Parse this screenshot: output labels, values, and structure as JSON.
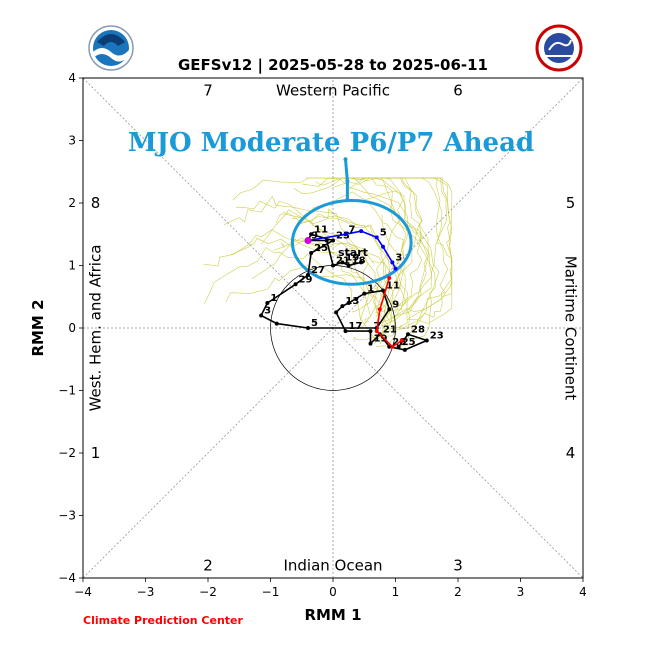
{
  "chart_data": {
    "type": "line",
    "title": "GEFSv12 | 2025-05-28 to 2025-06-11",
    "xlabel": "RMM 1",
    "ylabel": "RMM 2",
    "xlim": [
      -4,
      4
    ],
    "ylim": [
      -4,
      4
    ],
    "xticks": [
      -4,
      -3,
      -2,
      -1,
      0,
      1,
      2,
      3,
      4
    ],
    "yticks": [
      -4,
      -3,
      -2,
      -1,
      0,
      1,
      2,
      3,
      4
    ],
    "tick_labels": [
      "−4",
      "−3",
      "−2",
      "−1",
      "0",
      "1",
      "2",
      "3",
      "4"
    ],
    "grid": false,
    "annotation": "MJO Moderate P6/P7 Ahead",
    "annotation_color": "#1b9ad8",
    "phase_numbers": [
      "1",
      "2",
      "3",
      "4",
      "5",
      "6",
      "7",
      "8"
    ],
    "region_labels": {
      "top": "Western Pacific",
      "bottom": "Indian Ocean",
      "left": "West. Hem. and Africa",
      "right": "Maritime Continent"
    },
    "start_label": "start",
    "series": [
      {
        "color": "#000000",
        "points": [
          {
            "x": 1.05,
            "y": -0.3,
            "label": "25"
          },
          {
            "x": 1.2,
            "y": -0.1,
            "label": "28"
          },
          {
            "x": 1.5,
            "y": -0.2,
            "label": "23"
          },
          {
            "x": 1.15,
            "y": -0.35,
            "label": ""
          },
          {
            "x": 0.9,
            "y": -0.3,
            "label": "28"
          },
          {
            "x": 0.75,
            "y": -0.1,
            "label": "21"
          },
          {
            "x": 0.6,
            "y": -0.25,
            "label": "19"
          },
          {
            "x": 0.6,
            "y": -0.05,
            "label": "7"
          },
          {
            "x": 0.2,
            "y": -0.05,
            "label": "17"
          },
          {
            "x": 0.05,
            "y": 0.25,
            "label": ""
          },
          {
            "x": 0.15,
            "y": 0.35,
            "label": "13"
          },
          {
            "x": 0.25,
            "y": 0.4,
            "label": ""
          },
          {
            "x": 0.5,
            "y": 0.55,
            "label": "1"
          },
          {
            "x": 0.8,
            "y": 0.6,
            "label": "11"
          },
          {
            "x": 0.9,
            "y": 0.3,
            "label": "9"
          },
          {
            "x": 0.7,
            "y": 0.0,
            "label": ""
          },
          {
            "x": -0.4,
            "y": 0.0,
            "label": "5"
          },
          {
            "x": -0.9,
            "y": 0.07,
            "label": ""
          },
          {
            "x": -1.15,
            "y": 0.2,
            "label": "3"
          },
          {
            "x": -1.05,
            "y": 0.4,
            "label": "1"
          },
          {
            "x": -0.6,
            "y": 0.7,
            "label": "29"
          },
          {
            "x": -0.4,
            "y": 0.85,
            "label": "27"
          },
          {
            "x": -0.35,
            "y": 1.2,
            "label": "25"
          },
          {
            "x": 0.0,
            "y": 1.4,
            "label": "23"
          },
          {
            "x": -0.35,
            "y": 1.5,
            "label": "11"
          },
          {
            "x": -0.4,
            "y": 1.4,
            "label": "9"
          },
          {
            "x": -0.1,
            "y": 1.4,
            "label": ""
          },
          {
            "x": 0.0,
            "y": 1.0,
            "label": "21"
          },
          {
            "x": 0.15,
            "y": 1.05,
            "label": "19"
          },
          {
            "x": 0.25,
            "y": 1.0,
            "label": "18"
          },
          {
            "x": 0.45,
            "y": 1.05,
            "label": ""
          }
        ]
      },
      {
        "color": "#0000ff",
        "points": [
          {
            "x": -0.4,
            "y": 1.4,
            "label": ""
          },
          {
            "x": 0.2,
            "y": 1.5,
            "label": "7"
          },
          {
            "x": 0.45,
            "y": 1.55,
            "label": ""
          },
          {
            "x": 0.7,
            "y": 1.45,
            "label": "5"
          },
          {
            "x": 0.8,
            "y": 1.3,
            "label": ""
          },
          {
            "x": 0.95,
            "y": 1.05,
            "label": "3"
          },
          {
            "x": 1.0,
            "y": 0.95,
            "label": ""
          }
        ]
      },
      {
        "color": "#ff0000",
        "points": [
          {
            "x": 0.9,
            "y": 0.8,
            "label": ""
          },
          {
            "x": 0.75,
            "y": 0.3,
            "label": ""
          },
          {
            "x": 0.7,
            "y": -0.05,
            "label": ""
          },
          {
            "x": 0.95,
            "y": -0.3,
            "label": ""
          },
          {
            "x": 1.1,
            "y": -0.2,
            "label": ""
          }
        ]
      },
      {
        "color": "#d400d4",
        "points": [
          {
            "x": -0.4,
            "y": 1.4,
            "label": ""
          }
        ]
      },
      {
        "color": "#1b9ad8",
        "points": [
          {
            "x": 0.2,
            "y": 2.7,
            "label": ""
          },
          {
            "x": 0.23,
            "y": 2.35,
            "label": ""
          },
          {
            "x": 0.23,
            "y": 2.05,
            "label": ""
          }
        ]
      }
    ]
  },
  "credit": "Climate Prediction Center",
  "colors": {
    "ensemble": "#c8c832",
    "highlight_circle": "#1b9ad8"
  },
  "logos": [
    "noaa-logo",
    "national-weather-service-logo"
  ]
}
